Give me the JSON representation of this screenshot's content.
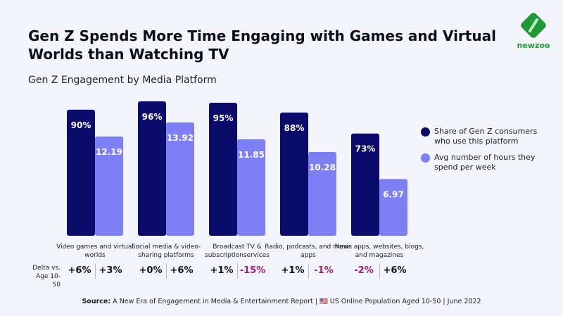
{
  "header": {
    "title": "Gen Z Spends More Time Engaging with Games and Virtual Worlds than Watching TV",
    "subtitle": "Gen Z Engagement by Media Platform",
    "logo_text": "newzoo"
  },
  "colors": {
    "share": "#0b0b6b",
    "hours": "#7d80f5",
    "negative": "#a0206e",
    "background": "#f4f4fc"
  },
  "chart_data": {
    "type": "bar",
    "title": "Gen Z Engagement by Media Platform",
    "categories": [
      "Video games and virtual worlds",
      "Social media & video-sharing platforms",
      "Broadcast TV & subscriptionservices",
      "Radio, podcasts, and music apps",
      "News apps, websites, blogs, and magazines"
    ],
    "series": [
      {
        "name": "Share of Gen Z consumers who use this platform",
        "values": [
          90,
          96,
          95,
          88,
          73
        ],
        "labels": [
          "90%",
          "96%",
          "95%",
          "88%",
          "73%"
        ]
      },
      {
        "name": "Avg number of hours they spend per week",
        "values": [
          12.19,
          13.92,
          11.85,
          10.28,
          6.97
        ],
        "labels": [
          "12.19",
          "13.92",
          "11.85",
          "10.28",
          "6.97"
        ]
      }
    ],
    "legend": "right"
  },
  "deltas": {
    "label": "Delta vs. Age 10-50",
    "share": [
      "+6%",
      "+0%",
      "+1%",
      "+1%",
      "-2%"
    ],
    "hours": [
      "+3%",
      "+6%",
      "-15%",
      "-1%",
      "+6%"
    ]
  },
  "source": {
    "bold": "Source:",
    "text": " A New Era of Engagement in Media & Entertainment Report | 🇺🇸 US Online Population Aged 10-50 | June 2022"
  }
}
